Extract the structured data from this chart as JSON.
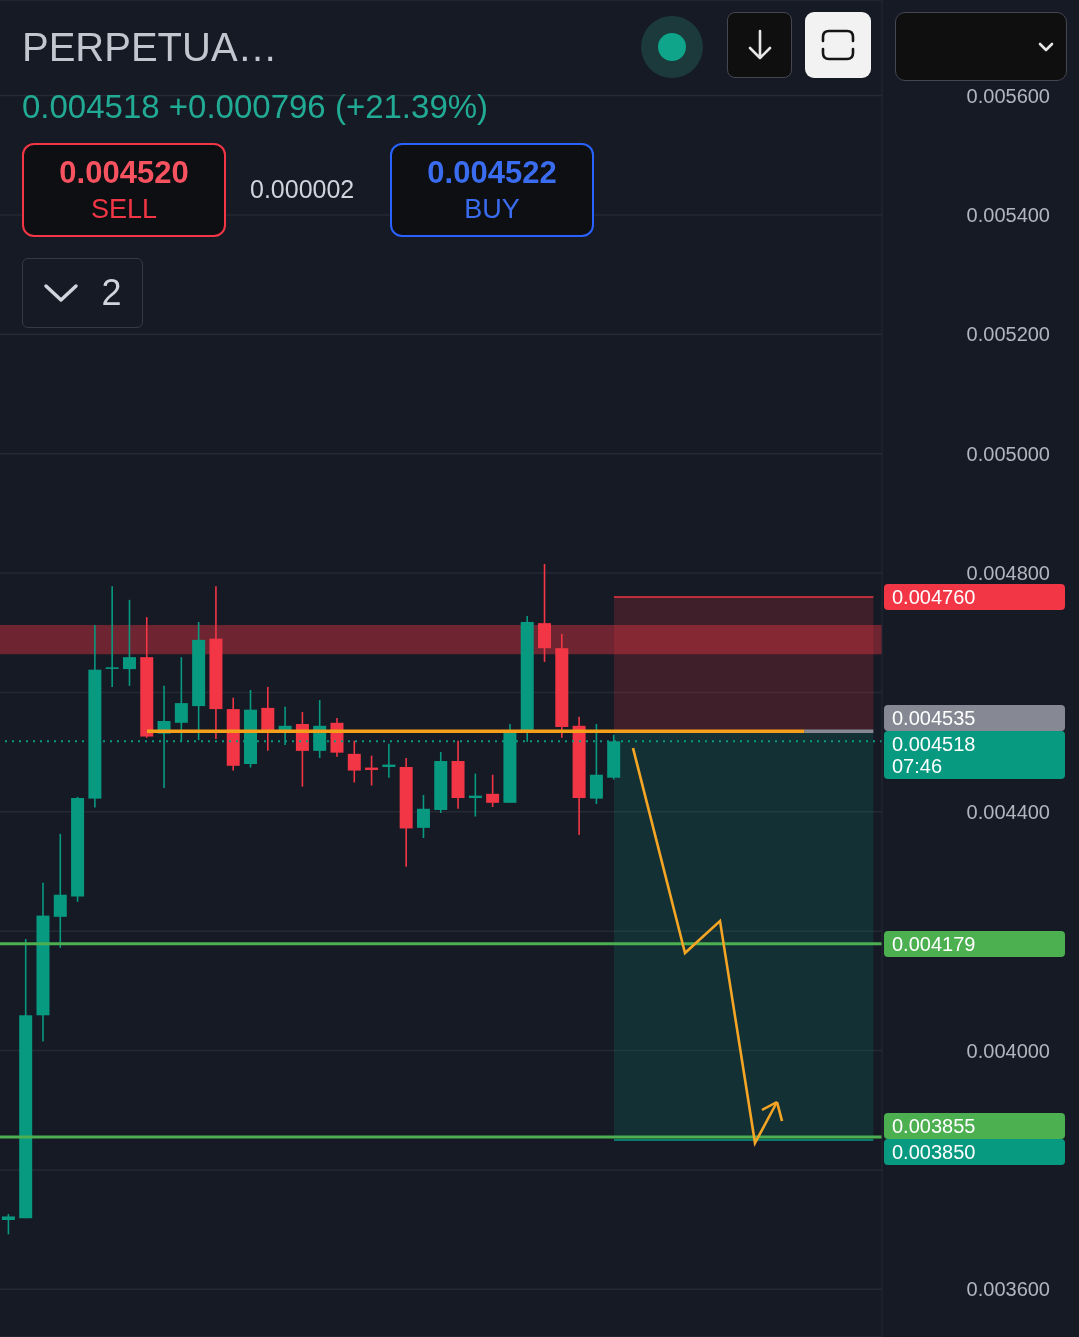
{
  "chart_data": {
    "type": "candlestick",
    "title": "PERPETUA…",
    "subtitle": "0.004518 +0.000796 (+21.39%)",
    "categories": [
      null,
      null,
      null,
      null,
      null,
      null,
      null,
      null,
      null,
      null,
      null,
      null,
      null,
      null,
      null,
      null,
      null,
      null,
      null,
      null,
      null,
      null,
      null,
      null,
      null,
      null,
      null,
      null,
      null,
      null,
      null,
      null,
      null,
      null,
      null,
      null,
      null,
      null,
      null,
      null,
      null,
      null,
      null,
      null,
      null,
      null,
      null,
      null,
      null,
      null,
      null
    ],
    "ohlc": [
      [
        0.003716,
        0.003726,
        0.003692,
        0.003722
      ],
      [
        0.003719,
        0.004187,
        0.003719,
        0.004059
      ],
      [
        0.004059,
        0.004281,
        0.004015,
        0.004226
      ],
      [
        0.004224,
        0.004363,
        0.004172,
        0.004261
      ],
      [
        0.004258,
        0.004425,
        0.004249,
        0.004423
      ],
      [
        0.004422,
        0.004713,
        0.004407,
        0.004638
      ],
      [
        0.004641,
        0.004778,
        0.004609,
        0.004642
      ],
      [
        0.004639,
        0.004755,
        0.004611,
        0.004659
      ],
      [
        0.004659,
        0.004726,
        0.004524,
        0.004526
      ],
      [
        0.004531,
        0.004611,
        0.00444,
        0.004552
      ],
      [
        0.004549,
        0.004659,
        0.004517,
        0.004582
      ],
      [
        0.004577,
        0.004718,
        0.00452,
        0.004688
      ],
      [
        0.00469,
        0.004778,
        0.004522,
        0.004572
      ],
      [
        0.004572,
        0.004591,
        0.004469,
        0.004477
      ],
      [
        0.00448,
        0.004604,
        0.004474,
        0.004571
      ],
      [
        0.004574,
        0.004609,
        0.004502,
        0.004536
      ],
      [
        0.004537,
        0.004576,
        0.004512,
        0.004544
      ],
      [
        0.004547,
        0.004567,
        0.004442,
        0.004502
      ],
      [
        0.004502,
        0.004587,
        0.00449,
        0.004544
      ],
      [
        0.004549,
        0.004557,
        0.004492,
        0.004499
      ],
      [
        0.004497,
        0.004519,
        0.004449,
        0.004469
      ],
      [
        0.004474,
        0.004494,
        0.004444,
        0.00447
      ],
      [
        0.004475,
        0.004514,
        0.004457,
        0.004479
      ],
      [
        0.004475,
        0.00449,
        0.004308,
        0.004372
      ],
      [
        0.004373,
        0.004428,
        0.004356,
        0.004405
      ],
      [
        0.004403,
        0.0045,
        0.004398,
        0.004485
      ],
      [
        0.004485,
        0.004519,
        0.004405,
        0.004423
      ],
      [
        0.004423,
        0.004464,
        0.004392,
        0.004427
      ],
      [
        0.00443,
        0.004462,
        0.004408,
        0.004415
      ],
      [
        0.004415,
        0.004547,
        0.004415,
        0.004537
      ],
      [
        0.004536,
        0.004728,
        0.004517,
        0.004718
      ],
      [
        0.004716,
        0.004815,
        0.004651,
        0.004674
      ],
      [
        0.004674,
        0.004698,
        0.004524,
        0.004542
      ],
      [
        0.004544,
        0.004559,
        0.004361,
        0.004423
      ],
      [
        0.004422,
        0.004547,
        0.004413,
        0.004462
      ],
      [
        0.004457,
        0.004529,
        0.004454,
        0.004518
      ],
      null,
      null,
      null,
      null,
      null,
      null,
      null,
      null,
      null,
      null,
      null,
      null,
      null,
      null,
      null
    ],
    "series": [
      {
        "type": "line",
        "color": "#868993",
        "values": [
          null,
          null,
          null,
          null,
          null,
          null,
          null,
          null,
          null,
          null,
          null,
          null,
          null,
          null,
          null,
          null,
          null,
          null,
          null,
          null,
          null,
          null,
          null,
          null,
          null,
          null,
          null,
          null,
          null,
          null,
          null,
          null,
          null,
          null,
          null,
          null,
          null,
          null,
          null,
          null,
          null,
          null,
          null,
          null,
          null,
          null,
          0.004535,
          0.004535,
          0.004535,
          0.004535,
          0.004535
        ],
        "value_labels": [
          null,
          null,
          null,
          null,
          null,
          null,
          null,
          null,
          null,
          null,
          null,
          null,
          null,
          null,
          null,
          null,
          null,
          null,
          null,
          null,
          null,
          null,
          null,
          null,
          null,
          null,
          null,
          null,
          null,
          null,
          null,
          null,
          null,
          null,
          null,
          null,
          null,
          null,
          null,
          null,
          null,
          null,
          null,
          null,
          null,
          null,
          null,
          null,
          null,
          null,
          "0.004535"
        ]
      },
      {
        "type": "line",
        "color": "#f59f1b",
        "values": [
          null,
          null,
          null,
          null,
          null,
          null,
          null,
          null,
          0.004535,
          0.004535,
          0.004535,
          0.004535,
          0.004535,
          0.004535,
          0.004535,
          0.004535,
          0.004535,
          0.004535,
          0.004535,
          0.004535,
          0.004535,
          0.004535,
          0.004535,
          0.004535,
          0.004535,
          0.004535,
          0.004535,
          0.004535,
          0.004535,
          0.004535,
          0.004535,
          0.004535,
          0.004535,
          0.004535,
          0.004535,
          0.004535,
          0.004535,
          0.004535,
          0.004535,
          0.004535,
          0.004535,
          0.004535,
          0.004535,
          0.004535,
          0.004535,
          0.004535,
          0.004535,
          null,
          null,
          null,
          null
        ]
      },
      {
        "type": "line",
        "color": "#f23645",
        "values": [
          null,
          null,
          null,
          null,
          null,
          null,
          null,
          null,
          null,
          null,
          null,
          null,
          null,
          null,
          null,
          null,
          null,
          null,
          null,
          null,
          null,
          null,
          null,
          null,
          null,
          null,
          null,
          null,
          null,
          null,
          null,
          null,
          null,
          null,
          null,
          0.00476,
          0.00476,
          0.00476,
          0.00476,
          0.00476,
          0.00476,
          0.00476,
          0.00476,
          0.00476,
          0.00476,
          0.00476,
          0.00476,
          0.00476,
          0.00476,
          0.00476,
          0.00476
        ],
        "lower": [
          null,
          null,
          null,
          null,
          null,
          null,
          null,
          null,
          null,
          null,
          null,
          null,
          null,
          null,
          null,
          null,
          null,
          null,
          null,
          null,
          null,
          null,
          null,
          null,
          null,
          null,
          null,
          null,
          null,
          null,
          null,
          null,
          null,
          null,
          null,
          0.004535,
          0.004535,
          0.004535,
          0.004535,
          0.004535,
          0.004535,
          0.004535,
          0.004535,
          0.004535,
          0.004535,
          0.004535,
          0.004535,
          0.004535,
          0.004535,
          0.004535,
          0.004535
        ],
        "upper": [
          null,
          null,
          null,
          null,
          null,
          null,
          null,
          null,
          null,
          null,
          null,
          null,
          null,
          null,
          null,
          null,
          null,
          null,
          null,
          null,
          null,
          null,
          null,
          null,
          null,
          null,
          null,
          null,
          null,
          null,
          null,
          null,
          null,
          null,
          null,
          0.00476,
          0.00476,
          0.00476,
          0.00476,
          0.00476,
          0.00476,
          0.00476,
          0.00476,
          0.00476,
          0.00476,
          0.00476,
          0.00476,
          0.00476,
          0.00476,
          0.00476,
          0.00476
        ],
        "value_labels": [
          null,
          null,
          null,
          null,
          null,
          null,
          null,
          null,
          null,
          null,
          null,
          null,
          null,
          null,
          null,
          null,
          null,
          null,
          null,
          null,
          null,
          null,
          null,
          null,
          null,
          null,
          null,
          null,
          null,
          null,
          null,
          null,
          null,
          null,
          null,
          null,
          null,
          null,
          null,
          null,
          null,
          null,
          null,
          null,
          null,
          null,
          null,
          null,
          null,
          null,
          "0.004760"
        ]
      },
      {
        "type": "line",
        "color": "#089981",
        "values": [
          null,
          null,
          null,
          null,
          null,
          null,
          null,
          null,
          null,
          null,
          null,
          null,
          null,
          null,
          null,
          null,
          null,
          null,
          null,
          null,
          null,
          null,
          null,
          null,
          null,
          null,
          null,
          null,
          null,
          null,
          null,
          null,
          null,
          null,
          null,
          0.00385,
          0.00385,
          0.00385,
          0.00385,
          0.00385,
          0.00385,
          0.00385,
          0.00385,
          0.00385,
          0.00385,
          0.00385,
          0.00385,
          0.00385,
          0.00385,
          0.00385,
          0.00385
        ],
        "lower": [
          null,
          null,
          null,
          null,
          null,
          null,
          null,
          null,
          null,
          null,
          null,
          null,
          null,
          null,
          null,
          null,
          null,
          null,
          null,
          null,
          null,
          null,
          null,
          null,
          null,
          null,
          null,
          null,
          null,
          null,
          null,
          null,
          null,
          null,
          null,
          0.00385,
          0.00385,
          0.00385,
          0.00385,
          0.00385,
          0.00385,
          0.00385,
          0.00385,
          0.00385,
          0.00385,
          0.00385,
          0.00385,
          0.00385,
          0.00385,
          0.00385,
          0.00385
        ],
        "upper": [
          null,
          null,
          null,
          null,
          null,
          null,
          null,
          null,
          null,
          null,
          null,
          null,
          null,
          null,
          null,
          null,
          null,
          null,
          null,
          null,
          null,
          null,
          null,
          null,
          null,
          null,
          null,
          null,
          null,
          null,
          null,
          null,
          null,
          null,
          null,
          0.004535,
          0.004535,
          0.004535,
          0.004535,
          0.004535,
          0.004535,
          0.004535,
          0.004535,
          0.004535,
          0.004535,
          0.004535,
          0.004535,
          0.004535,
          0.004535,
          0.004535,
          0.004535
        ],
        "value_labels": [
          null,
          null,
          null,
          null,
          null,
          null,
          null,
          null,
          null,
          null,
          null,
          null,
          null,
          null,
          null,
          null,
          null,
          null,
          null,
          null,
          null,
          null,
          null,
          null,
          null,
          null,
          null,
          null,
          null,
          null,
          null,
          null,
          null,
          null,
          null,
          null,
          null,
          null,
          null,
          null,
          null,
          null,
          null,
          null,
          null,
          null,
          null,
          null,
          null,
          null,
          "0.003850"
        ]
      }
    ],
    "ylim": [
      0.00352,
      0.00576
    ],
    "yticks": [
      {
        "value": 0.0036,
        "label": "0.003600"
      },
      {
        "value": 0.0038,
        "label": null
      },
      {
        "value": 0.004,
        "label": "0.004000"
      },
      {
        "value": 0.0042,
        "label": null
      },
      {
        "value": 0.0044,
        "label": "0.004400"
      },
      {
        "value": 0.0046,
        "label": null
      },
      {
        "value": 0.0048,
        "label": "0.004800"
      },
      {
        "value": 0.005,
        "label": "0.005000"
      },
      {
        "value": 0.0052,
        "label": "0.005200"
      },
      {
        "value": 0.0054,
        "label": "0.005400"
      },
      {
        "value": 0.0056,
        "label": "0.005600"
      }
    ],
    "grid": "y",
    "tick_labels": "y",
    "ref_lines": [
      {
        "axis": "y",
        "value": 0.004518,
        "label": "0.004518\n07:46",
        "color": "#089981",
        "line_style": "dotted"
      },
      {
        "axis": "y",
        "value": 0.004179,
        "label": "0.004179",
        "color": "#4caf50"
      },
      {
        "axis": "y",
        "value": 0.003855,
        "label": "0.003855",
        "color": "#4caf50"
      }
    ],
    "bands": [
      {
        "axis": "y",
        "from": 0.004664,
        "to": 0.004713,
        "color": "#6e2531"
      }
    ],
    "annotations": [
      "0.004520",
      "SELL",
      "0.000002",
      "0.004522",
      "BUY",
      "2"
    ]
  }
}
